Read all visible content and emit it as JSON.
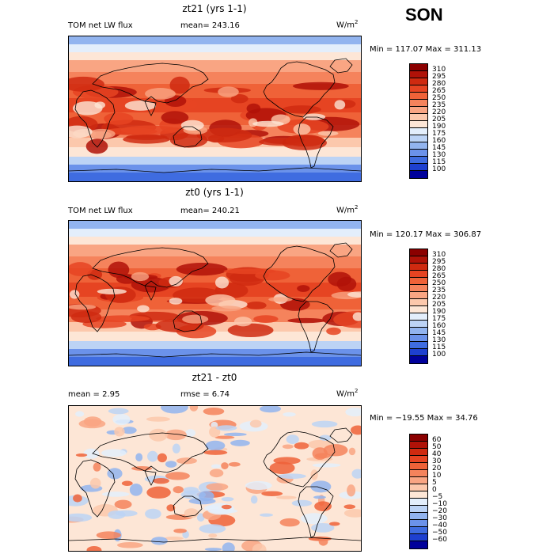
{
  "season": "SON",
  "panels": [
    {
      "title": "zt21 (yrs 1-1)",
      "left_label": "TOM net LW flux",
      "stat_label": "mean= 243.16",
      "units": "W/m",
      "units_exp": "2",
      "minmax": "Min = 117.07 Max = 311.13",
      "colorbar": [
        "310",
        "295",
        "280",
        "265",
        "250",
        "235",
        "220",
        "205",
        "190",
        "175",
        "160",
        "145",
        "130",
        "115",
        "100"
      ],
      "colors": [
        "#8b0000",
        "#b01208",
        "#cf2a10",
        "#e64422",
        "#ef6238",
        "#f5835c",
        "#f9a583",
        "#fcc8ac",
        "#fde6d6",
        "#e3eefb",
        "#bcd3f5",
        "#92b4ef",
        "#6b92ea",
        "#3f6ce0",
        "#1e40d0",
        "#00009b"
      ]
    },
    {
      "title": "zt0 (yrs 1-1)",
      "left_label": "TOM net LW flux",
      "stat_label": "mean= 240.21",
      "units": "W/m",
      "units_exp": "2",
      "minmax": "Min = 120.17 Max = 306.87",
      "colorbar": [
        "310",
        "295",
        "280",
        "265",
        "250",
        "235",
        "220",
        "205",
        "190",
        "175",
        "160",
        "145",
        "130",
        "115",
        "100"
      ],
      "colors": [
        "#8b0000",
        "#b01208",
        "#cf2a10",
        "#e64422",
        "#ef6238",
        "#f5835c",
        "#f9a583",
        "#fcc8ac",
        "#fde6d6",
        "#e3eefb",
        "#bcd3f5",
        "#92b4ef",
        "#6b92ea",
        "#3f6ce0",
        "#1e40d0",
        "#00009b"
      ]
    },
    {
      "title": "zt21 - zt0",
      "left_label": "mean =    2.95",
      "stat_label": "rmse =    6.74",
      "units": "W/m",
      "units_exp": "2",
      "minmax": "Min = −19.55 Max =   34.76",
      "colorbar": [
        "60",
        "50",
        "40",
        "30",
        "20",
        "10",
        "5",
        "0",
        "−5",
        "−10",
        "−20",
        "−30",
        "−40",
        "−50",
        "−60"
      ],
      "colors": [
        "#8b0000",
        "#b01208",
        "#cf2a10",
        "#e64422",
        "#ef6238",
        "#f5835c",
        "#f9a583",
        "#fcc8ac",
        "#fde6d6",
        "#e3eefb",
        "#bcd3f5",
        "#92b4ef",
        "#6b92ea",
        "#3f6ce0",
        "#1e40d0",
        "#00009b"
      ]
    }
  ]
}
